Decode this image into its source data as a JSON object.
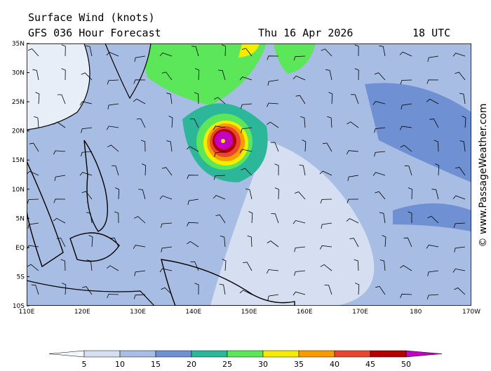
{
  "header": {
    "title": "Surface Wind (knots)",
    "model": "GFS 036 Hour Forecast",
    "date": "Thu 16 Apr 2026",
    "time": "18 UTC"
  },
  "lat_labels": [
    "35N",
    "30N",
    "25N",
    "20N",
    "15N",
    "10N",
    "5N",
    "EQ",
    "5S",
    "10S"
  ],
  "lon_labels": [
    "110E",
    "120E",
    "130E",
    "140E",
    "150E",
    "160E",
    "170E",
    "180",
    "170W"
  ],
  "colorbar": {
    "levels": [
      5,
      10,
      15,
      20,
      25,
      30,
      35,
      40,
      45,
      50
    ],
    "colors": [
      "#f2f5fb",
      "#d5dff1",
      "#a8bde3",
      "#6f90d2",
      "#2cb79a",
      "#5ce65a",
      "#f6ec00",
      "#f59c00",
      "#e9452f",
      "#b30000",
      "#c300c3"
    ]
  },
  "watermark": "© www.PassageWeather.com"
}
